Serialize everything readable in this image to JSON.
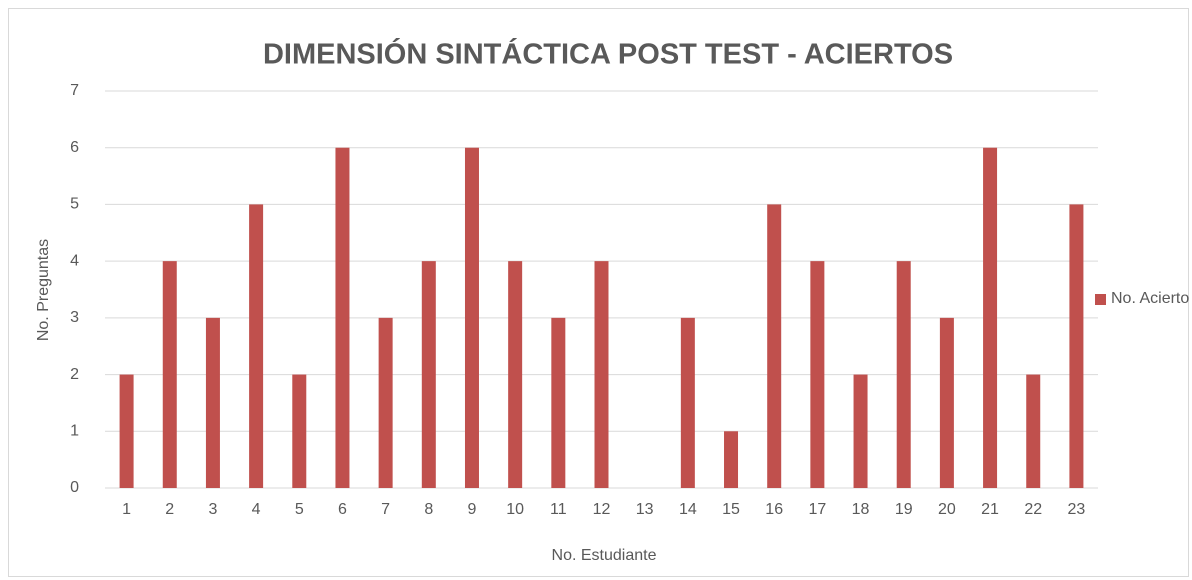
{
  "chart_data": {
    "type": "bar",
    "title": "DIMENSIÓN SINTÁCTICA POST TEST - ACIERTOS",
    "x_label": "No. Estudiante",
    "y_label": "No. Preguntas",
    "categories": [
      "1",
      "2",
      "3",
      "4",
      "5",
      "6",
      "7",
      "8",
      "9",
      "10",
      "11",
      "12",
      "13",
      "14",
      "15",
      "16",
      "17",
      "18",
      "19",
      "20",
      "21",
      "22",
      "23"
    ],
    "series": [
      {
        "name": "No. Acierto",
        "color": "#c0504d",
        "values": [
          2,
          4,
          3,
          5,
          2,
          6,
          3,
          4,
          6,
          4,
          3,
          4,
          0,
          3,
          1,
          5,
          4,
          2,
          4,
          3,
          6,
          2,
          5
        ]
      }
    ],
    "ylim": [
      0,
      7
    ],
    "yticks": [
      0,
      1,
      2,
      3,
      4,
      5,
      6,
      7
    ],
    "grid": true,
    "legend": "right"
  }
}
